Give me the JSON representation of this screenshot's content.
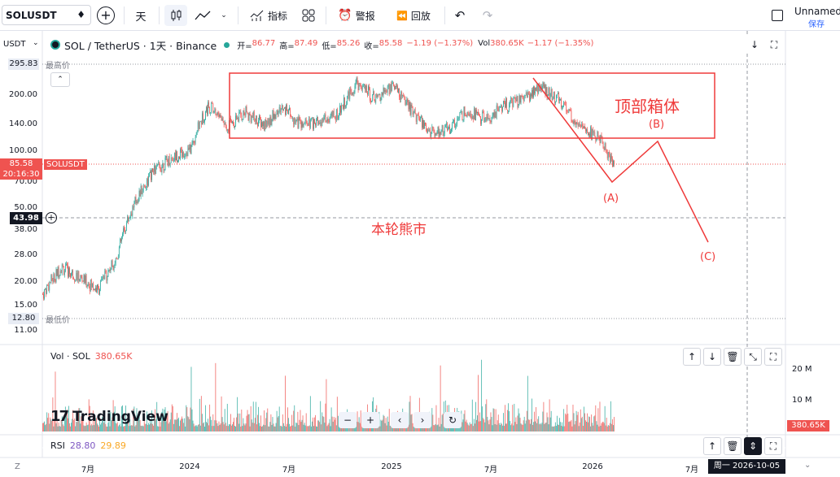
{
  "header": {
    "symbol": "SOLUSDT",
    "interval": "天",
    "indicators_label": "指标",
    "alert_label": "警报",
    "replay_label": "回放",
    "layout_name": "Unnamed",
    "save_label": "保存"
  },
  "legend": {
    "currency": "USDT",
    "title": "SOL / TetherUS · 1天 · Binance",
    "open_label": "开=",
    "open": "86.77",
    "high_label": "高=",
    "high": "87.49",
    "low_label": "低=",
    "low": "85.26",
    "close_label": "收=",
    "close": "85.58",
    "change": "−1.19 (−1.37%)",
    "vol_label": "Vol",
    "vol": "380.65K",
    "vol_change": "−1.17 (−1.35%)"
  },
  "price_axis": {
    "labels": [
      "200.00",
      "140.00",
      "100.00",
      "50.00",
      "38.00",
      "28.00",
      "20.00",
      "15.00",
      "11.00"
    ],
    "label_values": [
      200,
      140,
      100,
      50,
      38,
      28,
      20,
      15,
      11
    ],
    "partial_labels": [
      "70.00"
    ],
    "high_tag": "295.83",
    "high_tag_name": "最高价",
    "low_tag": "12.80",
    "low_tag_name": "最低价",
    "last_price": "85.58",
    "last_symbol": "SOLUSDT",
    "countdown": "20:16:30",
    "crosshair_price": "43.98"
  },
  "volume_pane": {
    "title": "Vol · SOL",
    "value": "380.65K",
    "axis_labels": [
      "20 M",
      "10 M"
    ],
    "last_tag": "380.65K"
  },
  "rsi_pane": {
    "title": "RSI",
    "value1": "28.80",
    "value2": "29.89"
  },
  "time_axis": {
    "labels": [
      "7月",
      "2024",
      "7月",
      "2025",
      "7月",
      "2026",
      "7月"
    ],
    "crosshair_date": "周一 2026-10-05",
    "zoom_label": "Z"
  },
  "annotations": {
    "box_label": "顶部箱体",
    "bear_label": "本轮熊市",
    "wave_a": "(A)",
    "wave_b": "(B)",
    "wave_c": "(C)"
  },
  "watermark": "TradingView",
  "colors": {
    "up": "#26a69a",
    "down": "#ef5350",
    "annotation": "#ef3a3a",
    "rsi1": "#7e57c2",
    "rsi2": "#f9a825"
  },
  "chart_data": {
    "type": "candlestick",
    "symbol": "SOLUSDT",
    "interval": "1D",
    "x": [
      "2023-06",
      "2023-07",
      "2023-08",
      "2023-09",
      "2023-10",
      "2023-11",
      "2023-12",
      "2024-01",
      "2024-02",
      "2024-03",
      "2024-04",
      "2024-05",
      "2024-06",
      "2024-07",
      "2024-08",
      "2024-09",
      "2024-10",
      "2024-11",
      "2024-12",
      "2025-01",
      "2025-02",
      "2025-03",
      "2025-04",
      "2025-05",
      "2025-06",
      "2025-07",
      "2025-08",
      "2025-09",
      "2025-10",
      "2025-11",
      "2025-12",
      "2026-01"
    ],
    "values": [
      18,
      25,
      22,
      19,
      28,
      55,
      80,
      95,
      105,
      180,
      140,
      165,
      140,
      175,
      140,
      145,
      160,
      235,
      195,
      230,
      165,
      130,
      135,
      170,
      150,
      180,
      190,
      225,
      190,
      140,
      125,
      85.58
    ],
    "y_scale": "log",
    "ylim": [
      11,
      296
    ],
    "x_ticks": [
      "7月",
      "2024",
      "7月",
      "2025",
      "7月",
      "2026",
      "7月"
    ],
    "last": 85.58,
    "high": 295.83,
    "low": 12.8,
    "volume_axis_ticks": [
      "10 M",
      "20 M"
    ]
  }
}
